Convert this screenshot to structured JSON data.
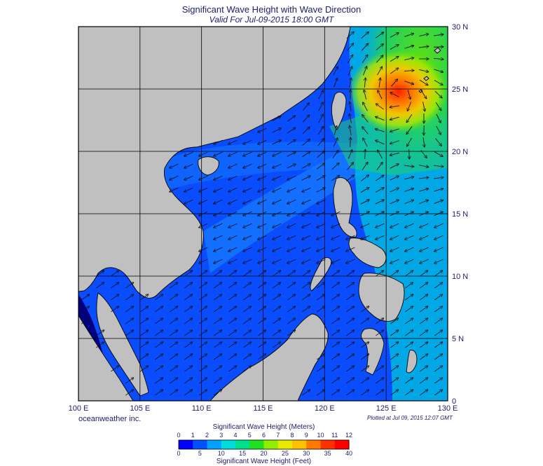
{
  "title": "Significant Wave Height with Wave Direction",
  "subtitle": "Valid For Jul-09-2015 18:00 GMT",
  "credit": "oceanweather inc.",
  "plotted": "Plotted at Jul 09, 2015 12:07 GMT",
  "map": {
    "lon_min": 100,
    "lon_max": 130,
    "lat_min": 0,
    "lat_max": 30,
    "lon_labels": [
      "100 E",
      "105 E",
      "110 E",
      "115 E",
      "120 E",
      "125 E",
      "130 E"
    ],
    "lat_labels": [
      "30 N",
      "25 N",
      "20 N",
      "15 N",
      "10 N",
      "5 N",
      "0"
    ],
    "grid_step_deg": 5,
    "land_color": "#c0c0c0",
    "typhoon_center": {
      "lon": 126.0,
      "lat": 24.8,
      "max_height_m": 12
    }
  },
  "colorbar": {
    "meters_title": "Significant Wave Height (Meters)",
    "feet_title": "Significant Wave Height (Feet)",
    "meters_ticks": [
      "0",
      "1",
      "2",
      "3",
      "4",
      "5",
      "6",
      "7",
      "8",
      "9",
      "10",
      "11",
      "12"
    ],
    "feet_ticks": [
      "0",
      "5",
      "10",
      "15",
      "20",
      "25",
      "30",
      "35",
      "40"
    ],
    "colors": [
      "#0000ff",
      "#0050ff",
      "#00a0ff",
      "#00dcdc",
      "#00e08a",
      "#20e020",
      "#90ee00",
      "#e8e800",
      "#ffc000",
      "#ff7a00",
      "#ff3000",
      "#ff0000"
    ]
  }
}
